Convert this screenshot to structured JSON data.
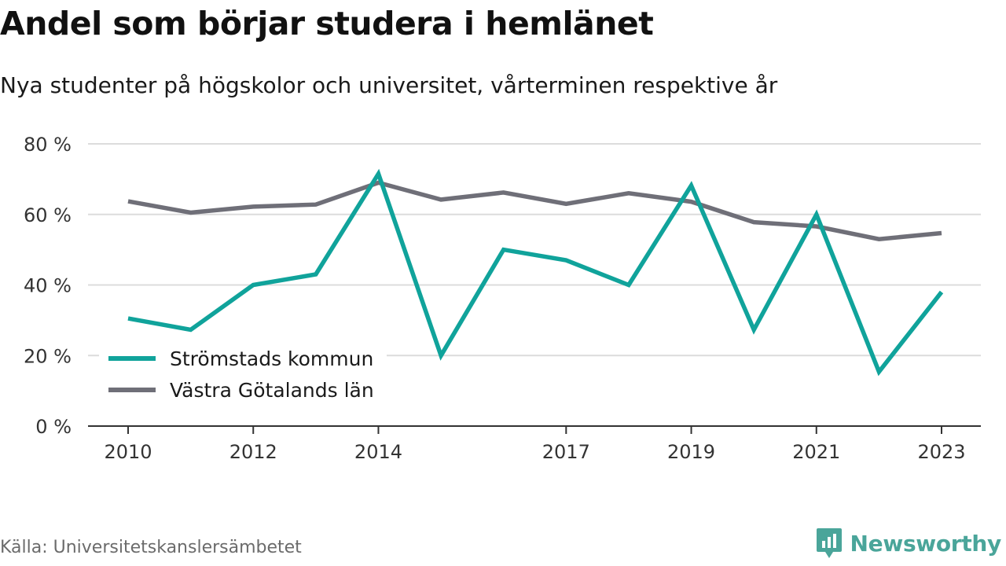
{
  "header": {
    "title": "Andel som börjar studera i hemlänet",
    "subtitle": "Nya studenter på högskolor och universitet, vårterminen respektive år"
  },
  "footer": {
    "source": "Källa: Universitetskanslersämbetet",
    "brand": "Newsworthy"
  },
  "colors": {
    "series_1": "#10a39b",
    "series_2": "#6f6f78",
    "grid": "#dcdcdc",
    "axis": "#333333",
    "brand": "#4aa59a"
  },
  "chart_data": {
    "type": "line",
    "title": "Andel som börjar studera i hemlänet",
    "subtitle": "Nya studenter på högskolor och universitet, vårterminen respektive år",
    "x": [
      2010,
      2011,
      2012,
      2013,
      2014,
      2015,
      2016,
      2017,
      2018,
      2019,
      2020,
      2021,
      2022,
      2023
    ],
    "x_tick_labels": [
      "2010",
      "2012",
      "2014",
      "2017",
      "2019",
      "2021",
      "2023"
    ],
    "y_tick_labels": [
      "0 %",
      "20 %",
      "40 %",
      "60 %",
      "80 %"
    ],
    "y_ticks": [
      0,
      20,
      40,
      60,
      80
    ],
    "ylim": [
      0,
      80
    ],
    "grid": true,
    "legend_position": "bottom-left",
    "series": [
      {
        "name": "Strömstads kommun",
        "color": "#10a39b",
        "values": [
          30.5,
          27.3,
          40.0,
          43.0,
          71.5,
          20.0,
          50.0,
          47.0,
          40.0,
          68.2,
          27.3,
          60.0,
          15.4,
          38.0
        ]
      },
      {
        "name": "Västra Götalands län",
        "color": "#6f6f78",
        "values": [
          63.7,
          60.5,
          62.2,
          62.8,
          69.0,
          64.2,
          66.2,
          63.0,
          66.0,
          63.6,
          57.8,
          56.6,
          53.0,
          54.7
        ]
      }
    ]
  }
}
